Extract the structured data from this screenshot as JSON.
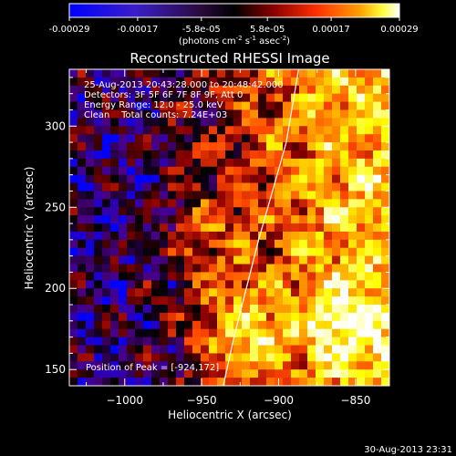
{
  "colorbar": {
    "ticks": [
      "-0.00029",
      "-0.00017",
      "-5.8e-05",
      "5.8e-05",
      "0.00017",
      "0.00029"
    ],
    "tick_values": [
      -0.00029,
      -0.00017,
      -5.8e-05,
      5.8e-05,
      0.00017,
      0.00029
    ],
    "units_main": "(photons cm",
    "units_sup1": "-2",
    "units_mid": " s",
    "units_sup2": "-1",
    "units_end": " asec",
    "units_sup3": "-2",
    "units_close": ")"
  },
  "info": {
    "line1": "25-Aug-2013 20:43:28.000 to 20:48:42.000",
    "line2": "Detectors: 3F 5F 6F 7F 8F 9F, Att 0",
    "line3": "Energy Range: 12.0 - 25.0 keV",
    "line4": "Clean    Total counts: 7.24E+03",
    "peak": "Position of Peak = [-924,172]"
  },
  "footer": {
    "timestamp": "30-Aug-2013 23:31"
  },
  "chart_data": {
    "type": "heatmap",
    "title": "Reconstructed RHESSI Image",
    "xlabel": "Heliocentric X (arcsec)",
    "ylabel": "Heliocentric Y (arcsec)",
    "xlim": [
      -1036,
      -828
    ],
    "ylim": [
      140,
      335
    ],
    "x_ticks": [
      -1000,
      -950,
      -900,
      -850
    ],
    "x_tick_labels": [
      "−1000",
      "−950",
      "−900",
      "−850"
    ],
    "y_ticks": [
      150,
      200,
      250,
      300
    ],
    "y_tick_labels": [
      "150",
      "200",
      "250",
      "300"
    ],
    "color_range": [
      -0.00029,
      0.00029
    ],
    "colormap": [
      "#0000ff",
      "#4b0082",
      "#000000",
      "#8b0000",
      "#ff4500",
      "#ffa500",
      "#ffff00",
      "#ffffff"
    ],
    "limb_line": {
      "x": [
        -936,
        -929,
        -921,
        -913,
        -904,
        -895,
        -887
      ],
      "y": [
        140,
        170,
        200,
        230,
        260,
        290,
        335
      ]
    },
    "peak": {
      "x": -924,
      "y": 172
    }
  }
}
